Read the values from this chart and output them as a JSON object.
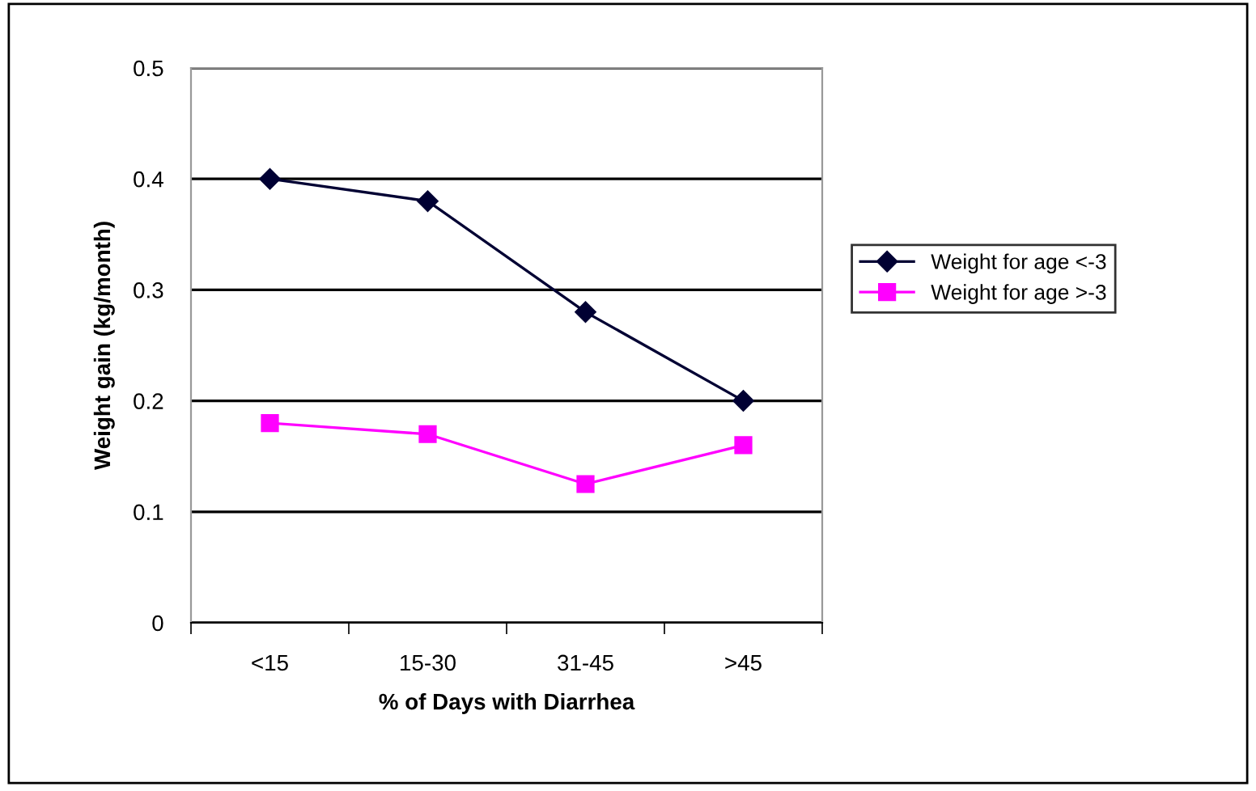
{
  "chart_data": {
    "type": "line",
    "xlabel": "% of Days with Diarrhea",
    "ylabel": "Weight gain (kg/month)",
    "categories": [
      "<15",
      "15-30",
      "31-45",
      ">45"
    ],
    "series": [
      {
        "name": "Weight for age <-3",
        "color": "#000033",
        "marker": "diamond",
        "values": [
          0.4,
          0.38,
          0.28,
          0.2
        ]
      },
      {
        "name": "Weight for age >-3",
        "color": "#ff00ff",
        "marker": "square",
        "values": [
          0.18,
          0.17,
          0.125,
          0.16
        ]
      }
    ],
    "ylim": [
      0,
      0.5
    ],
    "yticks": [
      {
        "value": 0,
        "label": "0"
      },
      0.1,
      0.2,
      0.3,
      0.4,
      0.5
    ],
    "grid": "y",
    "legend": "right"
  }
}
